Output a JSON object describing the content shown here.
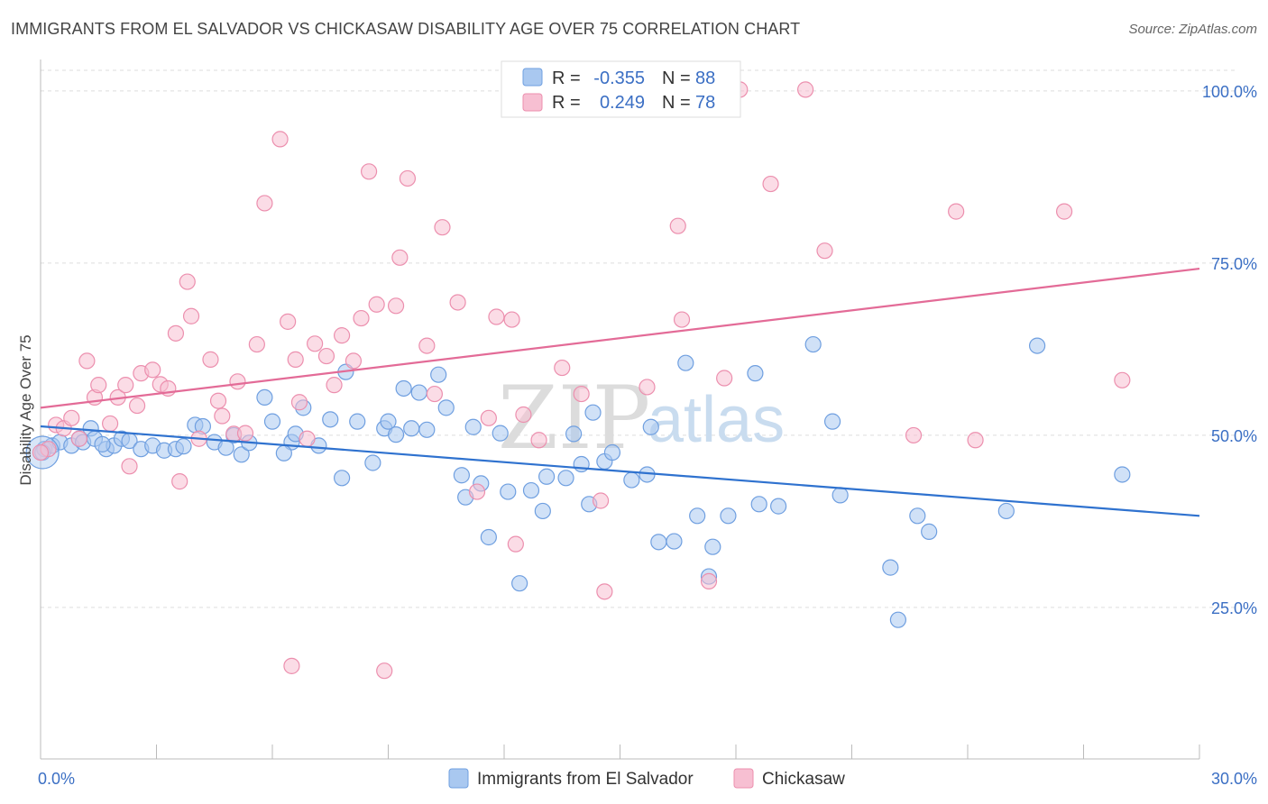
{
  "title": "IMMIGRANTS FROM EL SALVADOR VS CHICKASAW DISABILITY AGE OVER 75 CORRELATION CHART",
  "source": "Source: ZipAtlas.com",
  "watermark": {
    "zip": "ZIP",
    "atlas": "atlas"
  },
  "colors": {
    "blue_fill": "#a9c8f0",
    "blue_stroke": "#6f9fe0",
    "blue_line": "#2f72cf",
    "pink_fill": "#f7bfd2",
    "pink_stroke": "#ec8fae",
    "pink_line": "#e36b97",
    "tick_text": "#3b6fc4",
    "grid": "#dddddd"
  },
  "legend": {
    "rows": [
      {
        "r_label": "R =",
        "r_value": "-0.355",
        "n_label": "N =",
        "n_value": "88"
      },
      {
        "r_label": "R =",
        "r_value": "0.249",
        "n_label": "N =",
        "n_value": "78"
      }
    ]
  },
  "chart_data": {
    "type": "scatter",
    "title": "IMMIGRANTS FROM EL SALVADOR VS CHICKASAW DISABILITY AGE OVER 75 CORRELATION CHART",
    "xlabel": "",
    "ylabel": "Disability Age Over 75",
    "xlim": [
      0,
      30
    ],
    "ylim": [
      3,
      103
    ],
    "x_tick_labels": [
      "0.0%",
      "30.0%"
    ],
    "y_ticks": [
      25,
      50,
      75,
      100
    ],
    "y_tick_labels": [
      "25.0%",
      "50.0%",
      "75.0%",
      "100.0%"
    ],
    "grid": "horizontal dashed",
    "legend_placement": "top-center and bottom",
    "series": [
      {
        "name": "Immigrants from El Salvador",
        "r": -0.355,
        "n": 88,
        "trend": {
          "x": [
            0,
            30
          ],
          "y": [
            51.3,
            38.3
          ]
        },
        "points": [
          [
            0.1,
            48
          ],
          [
            0.3,
            48.5
          ],
          [
            0.5,
            49
          ],
          [
            0.8,
            48.5
          ],
          [
            1.0,
            49.5
          ],
          [
            1.1,
            49
          ],
          [
            1.3,
            51
          ],
          [
            1.4,
            49.5
          ],
          [
            1.7,
            48
          ],
          [
            1.9,
            48.5
          ],
          [
            2.1,
            49.5
          ],
          [
            2.3,
            49.2
          ],
          [
            2.6,
            48
          ],
          [
            2.9,
            48.5
          ],
          [
            3.2,
            47.8
          ],
          [
            3.5,
            48
          ],
          [
            4.0,
            51.5
          ],
          [
            4.2,
            51.3
          ],
          [
            4.5,
            49
          ],
          [
            4.8,
            48.2
          ],
          [
            5.0,
            50
          ],
          [
            5.2,
            47.2
          ],
          [
            5.8,
            55.5
          ],
          [
            6.0,
            52
          ],
          [
            6.5,
            49
          ],
          [
            6.6,
            50.2
          ],
          [
            6.8,
            54
          ],
          [
            7.2,
            48.5
          ],
          [
            7.5,
            52.3
          ],
          [
            7.8,
            43.8
          ],
          [
            7.9,
            59.2
          ],
          [
            8.2,
            52
          ],
          [
            8.6,
            46
          ],
          [
            8.9,
            51
          ],
          [
            9.0,
            52
          ],
          [
            9.4,
            56.8
          ],
          [
            9.6,
            51
          ],
          [
            9.8,
            56.2
          ],
          [
            10.0,
            50.8
          ],
          [
            10.3,
            58.8
          ],
          [
            10.5,
            54
          ],
          [
            10.9,
            44.2
          ],
          [
            11.0,
            41
          ],
          [
            11.2,
            51.2
          ],
          [
            11.4,
            43
          ],
          [
            11.6,
            35.2
          ],
          [
            11.9,
            50.3
          ],
          [
            12.1,
            41.8
          ],
          [
            12.4,
            28.5
          ],
          [
            12.7,
            42
          ],
          [
            13.0,
            39
          ],
          [
            13.1,
            44
          ],
          [
            13.6,
            43.8
          ],
          [
            13.8,
            50.2
          ],
          [
            14.0,
            45.8
          ],
          [
            14.2,
            40
          ],
          [
            14.3,
            53.3
          ],
          [
            14.6,
            46.2
          ],
          [
            14.8,
            47.5
          ],
          [
            15.3,
            43.5
          ],
          [
            15.7,
            44.3
          ],
          [
            15.8,
            51.2
          ],
          [
            16.0,
            34.5
          ],
          [
            16.4,
            34.6
          ],
          [
            16.7,
            60.5
          ],
          [
            17.0,
            38.3
          ],
          [
            17.3,
            29.5
          ],
          [
            17.4,
            33.8
          ],
          [
            17.8,
            38.3
          ],
          [
            18.5,
            59
          ],
          [
            18.6,
            40
          ],
          [
            19.1,
            39.7
          ],
          [
            20.0,
            63.2
          ],
          [
            20.5,
            52
          ],
          [
            20.7,
            41.3
          ],
          [
            22.0,
            30.8
          ],
          [
            22.2,
            23.2
          ],
          [
            22.7,
            38.3
          ],
          [
            23.0,
            36
          ],
          [
            25.0,
            39
          ],
          [
            25.8,
            63
          ],
          [
            28.0,
            44.3
          ],
          [
            0.05,
            47.5
          ],
          [
            1.6,
            48.7
          ],
          [
            3.7,
            48.4
          ],
          [
            5.4,
            48.9
          ],
          [
            6.3,
            47.4
          ],
          [
            9.2,
            50.1
          ]
        ]
      },
      {
        "name": "Chickasaw",
        "r": 0.249,
        "n": 78,
        "trend": {
          "x": [
            0,
            30
          ],
          "y": [
            54.0,
            74.2
          ]
        },
        "points": [
          [
            0.2,
            48
          ],
          [
            0.4,
            51.5
          ],
          [
            0.6,
            51
          ],
          [
            0.8,
            52.5
          ],
          [
            1.0,
            49.5
          ],
          [
            1.2,
            60.8
          ],
          [
            1.4,
            55.5
          ],
          [
            1.5,
            57.3
          ],
          [
            1.8,
            51.7
          ],
          [
            2.0,
            55.5
          ],
          [
            2.2,
            57.3
          ],
          [
            2.3,
            45.5
          ],
          [
            2.5,
            54.3
          ],
          [
            2.6,
            59
          ],
          [
            2.9,
            59.5
          ],
          [
            3.1,
            57.4
          ],
          [
            3.3,
            56.8
          ],
          [
            3.5,
            64.8
          ],
          [
            3.6,
            43.3
          ],
          [
            3.8,
            72.3
          ],
          [
            3.9,
            67.3
          ],
          [
            4.1,
            49.5
          ],
          [
            4.4,
            61
          ],
          [
            4.6,
            55
          ],
          [
            4.7,
            52.8
          ],
          [
            5.0,
            50.2
          ],
          [
            5.1,
            57.8
          ],
          [
            5.3,
            50.3
          ],
          [
            5.6,
            63.2
          ],
          [
            5.8,
            83.7
          ],
          [
            6.2,
            93
          ],
          [
            6.4,
            66.5
          ],
          [
            6.5,
            16.5
          ],
          [
            6.6,
            61
          ],
          [
            6.7,
            54.8
          ],
          [
            6.9,
            49.5
          ],
          [
            7.1,
            63.3
          ],
          [
            7.4,
            61.5
          ],
          [
            7.6,
            57.3
          ],
          [
            7.8,
            64.5
          ],
          [
            8.1,
            60.8
          ],
          [
            8.3,
            67
          ],
          [
            8.5,
            88.3
          ],
          [
            8.7,
            69
          ],
          [
            8.9,
            15.8
          ],
          [
            9.2,
            68.8
          ],
          [
            9.3,
            75.8
          ],
          [
            9.5,
            87.3
          ],
          [
            10.0,
            63
          ],
          [
            10.2,
            56
          ],
          [
            10.4,
            80.2
          ],
          [
            10.8,
            69.3
          ],
          [
            11.3,
            41.8
          ],
          [
            11.6,
            52.5
          ],
          [
            11.8,
            67.2
          ],
          [
            12.2,
            66.8
          ],
          [
            12.3,
            34.2
          ],
          [
            12.5,
            53
          ],
          [
            12.9,
            49.3
          ],
          [
            13.5,
            59.8
          ],
          [
            14.0,
            56
          ],
          [
            14.5,
            40.5
          ],
          [
            14.6,
            27.3
          ],
          [
            15.7,
            57
          ],
          [
            16.5,
            80.4
          ],
          [
            16.6,
            66.8
          ],
          [
            17.3,
            28.8
          ],
          [
            17.7,
            58.3
          ],
          [
            18.1,
            100.2
          ],
          [
            18.9,
            86.5
          ],
          [
            19.8,
            100.2
          ],
          [
            20.3,
            76.8
          ],
          [
            22.6,
            50
          ],
          [
            23.7,
            82.5
          ],
          [
            24.2,
            49.3
          ],
          [
            26.5,
            82.5
          ],
          [
            28.0,
            58
          ],
          [
            0.0,
            47.5
          ]
        ]
      }
    ]
  },
  "bottom_legend": {
    "items": [
      {
        "label": "Immigrants from El Salvador"
      },
      {
        "label": "Chickasaw"
      }
    ]
  }
}
